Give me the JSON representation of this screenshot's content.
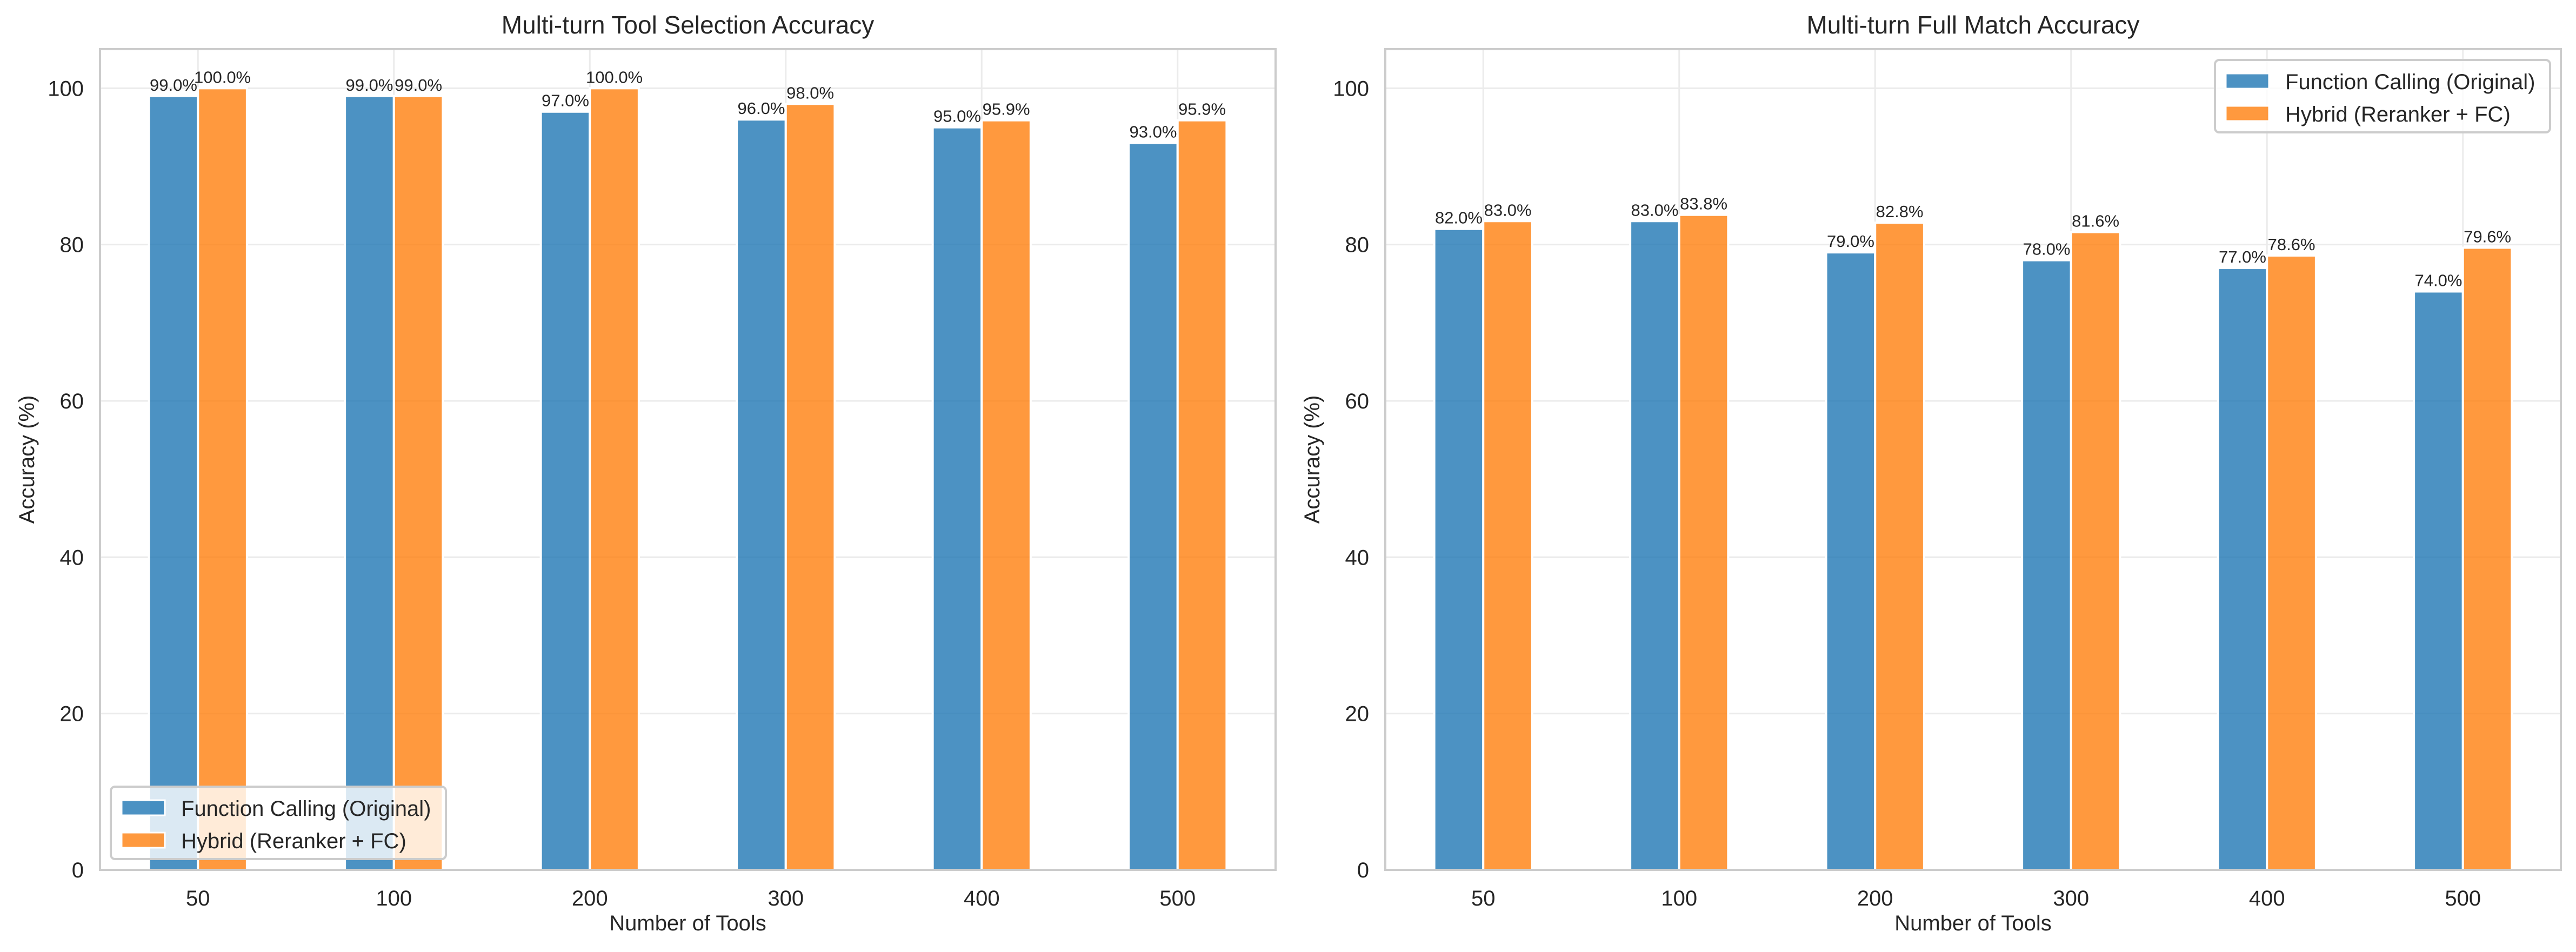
{
  "colors": {
    "series_0": "#1f77b4",
    "series_1": "#ff7f0e",
    "grid": "#ebebeb",
    "spine": "#cccccc",
    "text": "#262626"
  },
  "chart_data": [
    {
      "type": "bar",
      "title": "Multi-turn Tool Selection Accuracy",
      "xlabel": "Number of Tools",
      "ylabel": "Accuracy (%)",
      "categories": [
        "50",
        "100",
        "200",
        "300",
        "400",
        "500"
      ],
      "ylim": [
        0,
        105
      ],
      "yticks": [
        0,
        20,
        40,
        60,
        80,
        100
      ],
      "grid": true,
      "legend_position": "lower-left",
      "series": [
        {
          "name": "Function Calling (Original)",
          "values": [
            99.0,
            99.0,
            97.0,
            96.0,
            95.0,
            93.0
          ],
          "labels": [
            "99.0%",
            "99.0%",
            "97.0%",
            "96.0%",
            "95.0%",
            "93.0%"
          ]
        },
        {
          "name": "Hybrid (Reranker + FC)",
          "values": [
            100.0,
            99.0,
            100.0,
            98.0,
            95.9,
            95.9
          ],
          "labels": [
            "100.0%",
            "99.0%",
            "100.0%",
            "98.0%",
            "95.9%",
            "95.9%"
          ]
        }
      ]
    },
    {
      "type": "bar",
      "title": "Multi-turn Full Match Accuracy",
      "xlabel": "Number of Tools",
      "ylabel": "Accuracy (%)",
      "categories": [
        "50",
        "100",
        "200",
        "300",
        "400",
        "500"
      ],
      "ylim": [
        0,
        105
      ],
      "yticks": [
        0,
        20,
        40,
        60,
        80,
        100
      ],
      "grid": true,
      "legend_position": "upper-right",
      "series": [
        {
          "name": "Function Calling (Original)",
          "values": [
            82.0,
            83.0,
            79.0,
            78.0,
            77.0,
            74.0
          ],
          "labels": [
            "82.0%",
            "83.0%",
            "79.0%",
            "78.0%",
            "77.0%",
            "74.0%"
          ]
        },
        {
          "name": "Hybrid (Reranker + FC)",
          "values": [
            83.0,
            83.8,
            82.8,
            81.6,
            78.6,
            79.6
          ],
          "labels": [
            "83.0%",
            "83.8%",
            "82.8%",
            "81.6%",
            "78.6%",
            "79.6%"
          ]
        }
      ]
    }
  ]
}
